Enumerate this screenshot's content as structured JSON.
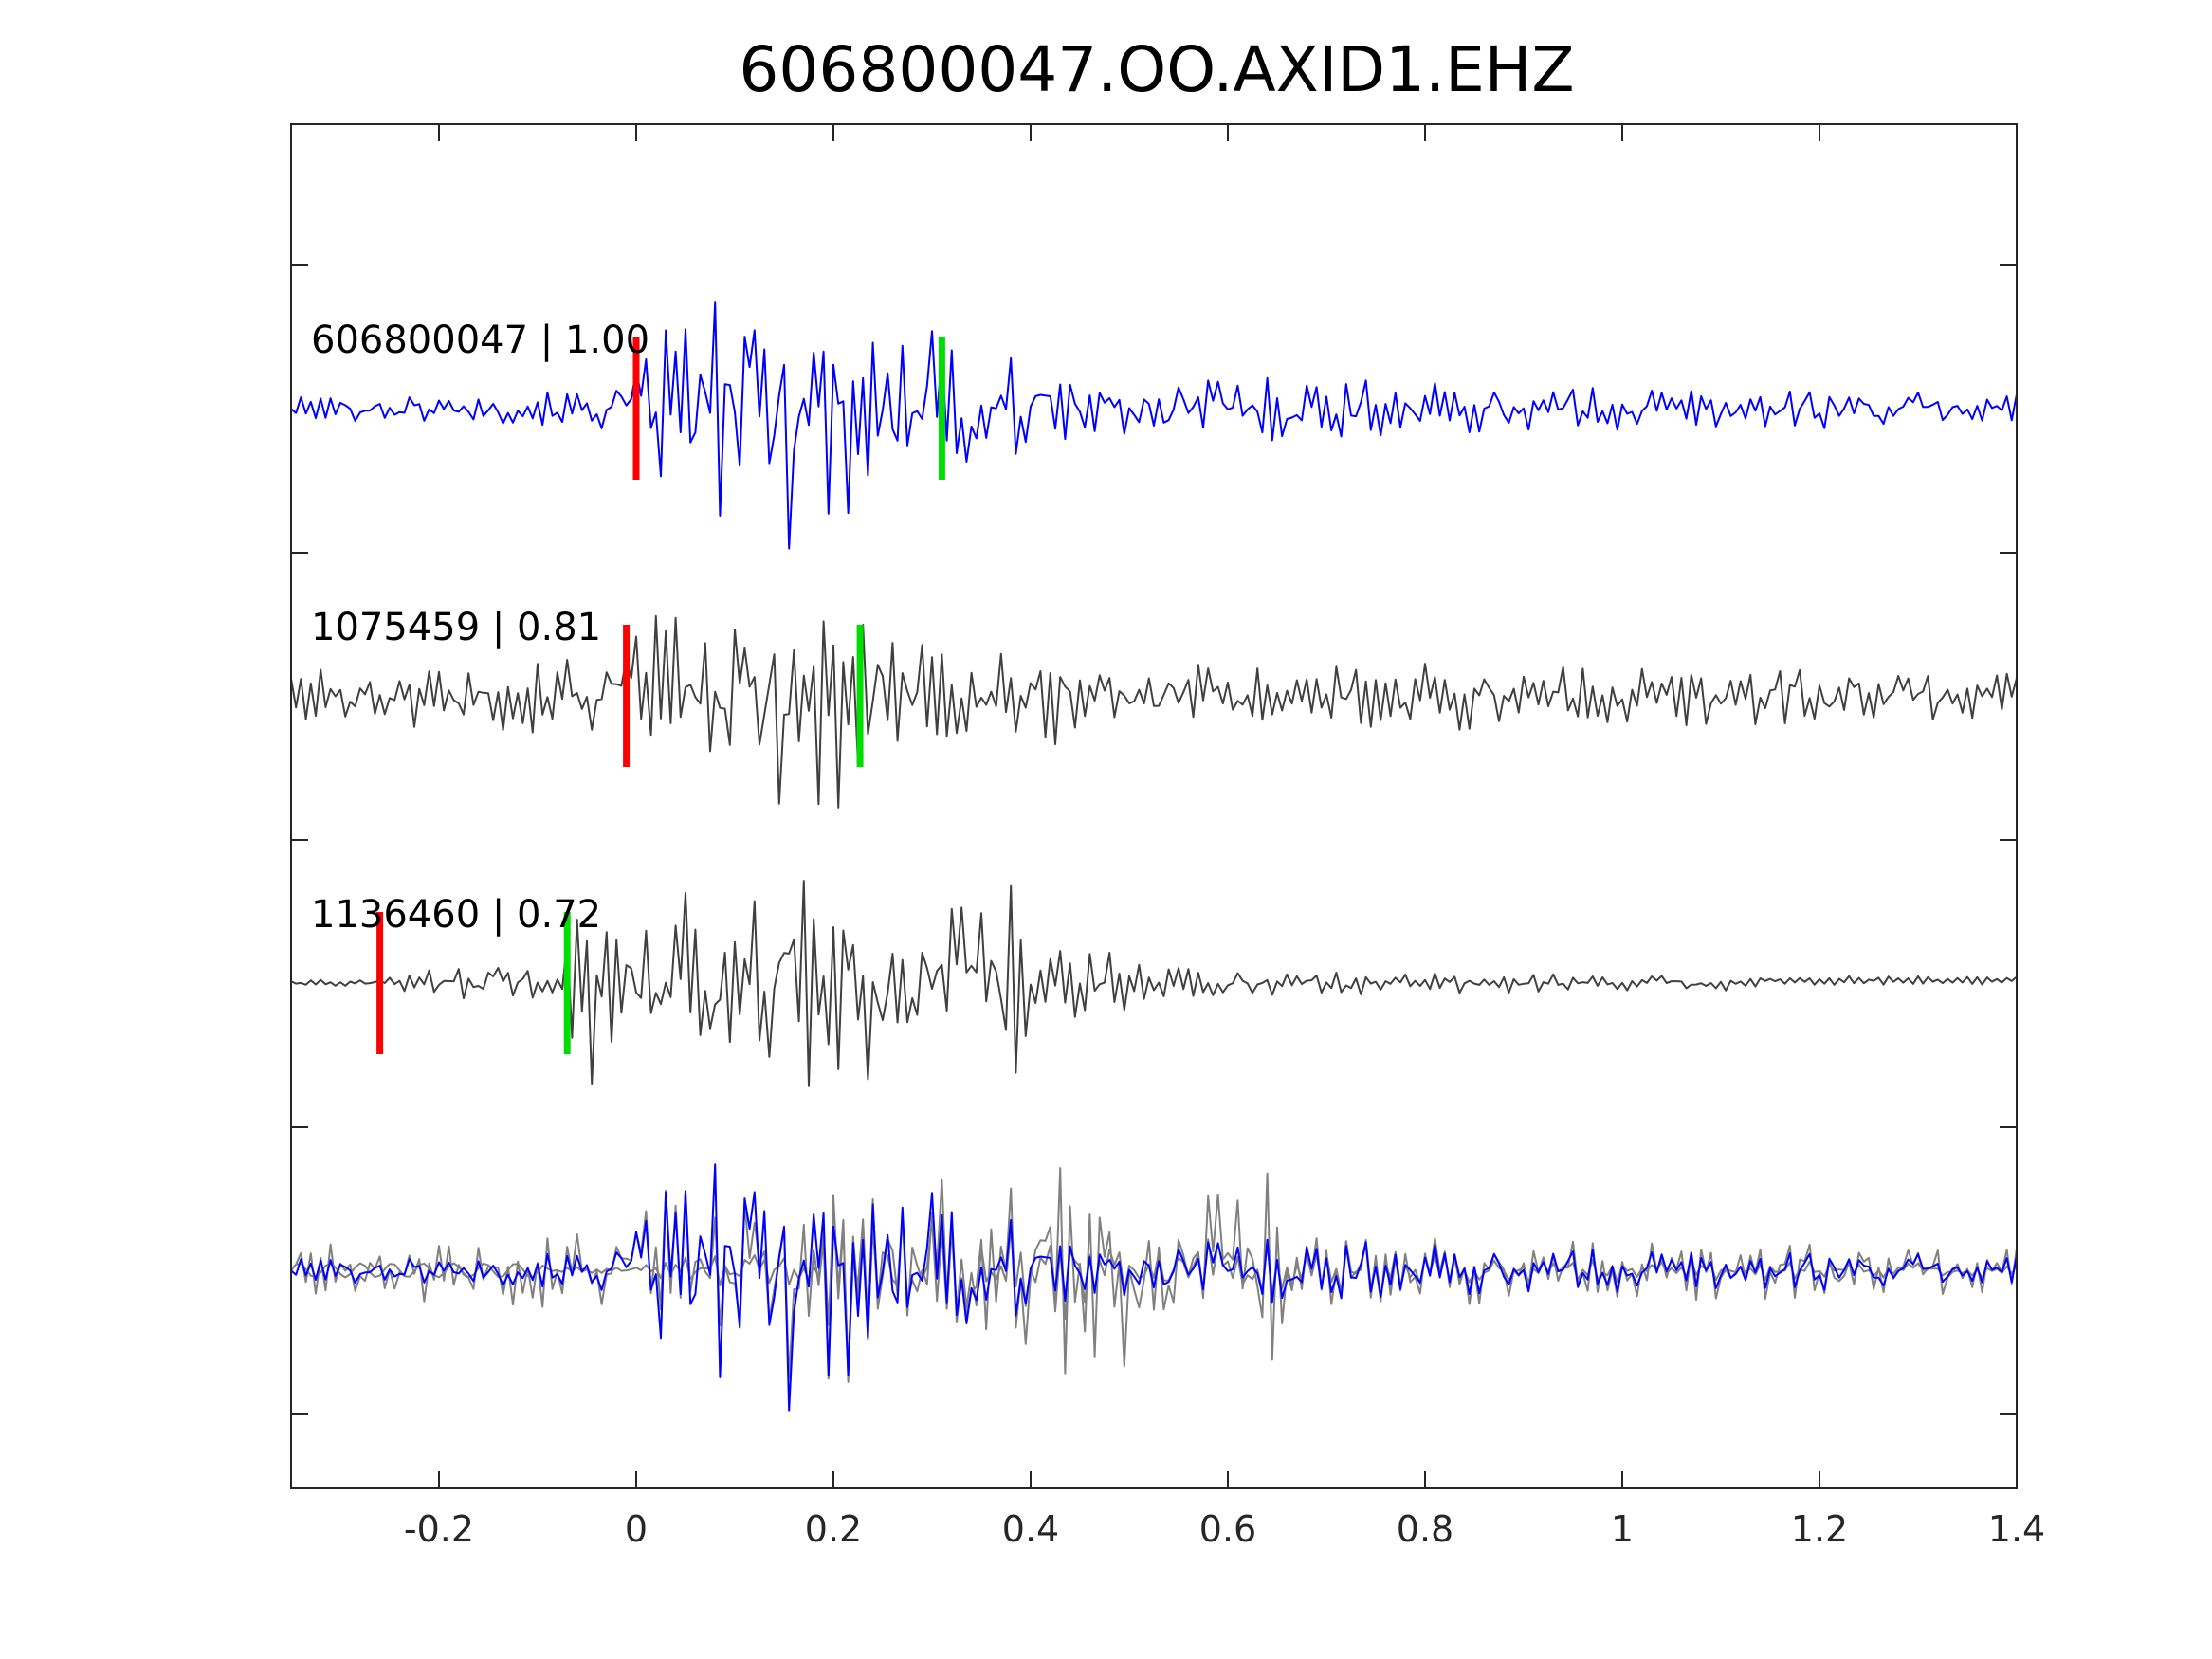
{
  "chart_data": {
    "type": "line",
    "title": "606800047.OO.AXID1.EHZ",
    "xlabel": "",
    "ylabel": "",
    "xlim": [
      -0.35,
      1.4
    ],
    "x_ticks": [
      "-0.2",
      "0",
      "0.2",
      "0.4",
      "0.6",
      "0.8",
      "1",
      "1.2",
      "1.4"
    ],
    "x_tick_values": [
      -0.2,
      0,
      0.2,
      0.4,
      0.6,
      0.8,
      1.0,
      1.2,
      1.4
    ],
    "grid": false,
    "sample_interval": 0.005,
    "colors": {
      "reference": "#0000ff",
      "matched": "#404040",
      "overlay_matched": "#808080",
      "p_pick": "#ff0000",
      "s_pick": "#00dd00",
      "axis": "#262626"
    },
    "series": [
      {
        "id": "606800047",
        "label": "606800047 | 1.00",
        "event": "606800047",
        "correlation": "1.00",
        "p_pick": 0.0,
        "s_pick": 0.31,
        "role": "reference",
        "envelope": [
          [
            -0.35,
            0.08
          ],
          [
            -0.05,
            0.12
          ],
          [
            0.0,
            0.3
          ],
          [
            0.04,
            0.7
          ],
          [
            0.12,
            0.8
          ],
          [
            0.15,
            1.0
          ],
          [
            0.2,
            0.95
          ],
          [
            0.28,
            0.7
          ],
          [
            0.32,
            0.45
          ],
          [
            0.38,
            0.6
          ],
          [
            0.42,
            0.25
          ],
          [
            0.6,
            0.25
          ],
          [
            0.8,
            0.18
          ],
          [
            1.4,
            0.12
          ]
        ],
        "seed": 7
      },
      {
        "id": "1075459",
        "label": "1075459 | 0.81",
        "event": "1075459",
        "correlation": "0.81",
        "p_pick": -0.01,
        "s_pick": 0.227,
        "role": "matched",
        "envelope": [
          [
            -0.35,
            0.2
          ],
          [
            -0.02,
            0.3
          ],
          [
            0.0,
            0.6
          ],
          [
            0.1,
            0.7
          ],
          [
            0.15,
            0.85
          ],
          [
            0.19,
            1.0
          ],
          [
            0.24,
            0.7
          ],
          [
            0.3,
            0.5
          ],
          [
            0.4,
            0.45
          ],
          [
            0.46,
            0.3
          ],
          [
            0.6,
            0.25
          ],
          [
            1.4,
            0.25
          ]
        ],
        "seed": 13
      },
      {
        "id": "1136460",
        "label": "1136460 | 0.72",
        "event": "1136460",
        "correlation": "0.72",
        "p_pick": -0.26,
        "s_pick": -0.07,
        "role": "matched",
        "envelope": [
          [
            -0.35,
            0.02
          ],
          [
            -0.26,
            0.04
          ],
          [
            -0.2,
            0.12
          ],
          [
            -0.08,
            0.18
          ],
          [
            -0.07,
            0.9
          ],
          [
            0.0,
            0.7
          ],
          [
            0.15,
            0.9
          ],
          [
            0.19,
            1.0
          ],
          [
            0.3,
            0.6
          ],
          [
            0.38,
            0.75
          ],
          [
            0.44,
            0.3
          ],
          [
            0.6,
            0.12
          ],
          [
            0.8,
            0.08
          ],
          [
            1.4,
            0.05
          ]
        ],
        "seed": 29
      }
    ],
    "overlay": {
      "description_series": [
        "606800047",
        "1075459",
        "1136460"
      ]
    }
  }
}
